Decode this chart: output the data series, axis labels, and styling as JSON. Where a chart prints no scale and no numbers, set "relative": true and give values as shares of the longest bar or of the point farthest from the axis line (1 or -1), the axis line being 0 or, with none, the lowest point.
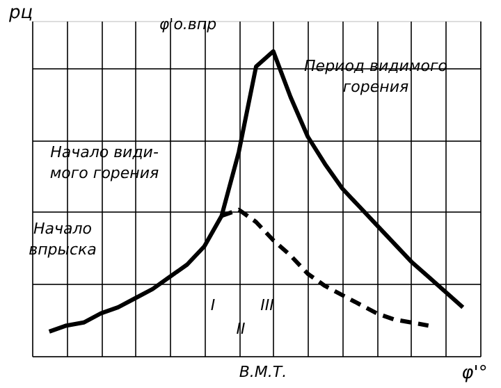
{
  "chart_data": {
    "type": "line",
    "relative": true,
    "grid": true,
    "tick_labels": false,
    "xlabel": "φ'°",
    "ylabel": "pц",
    "categories": [
      null,
      null,
      null,
      null,
      null,
      null,
      null,
      null,
      null,
      null,
      null,
      null,
      null,
      null,
      null,
      null,
      null,
      null,
      null,
      null,
      null,
      null,
      null,
      null,
      null,
      null,
      null
    ],
    "series": [
      {
        "color": "#000000",
        "line_style": "solid",
        "values": [
          null,
          0.08,
          0.1,
          0.11,
          0.14,
          0.16,
          0.19,
          0.22,
          0.26,
          0.3,
          0.36,
          0.46,
          0.67,
          0.95,
          1.0,
          0.85,
          0.72,
          0.63,
          0.55,
          0.49,
          0.43,
          0.37,
          0.31,
          0.26,
          0.21,
          0.16,
          null
        ]
      },
      {
        "color": "#000000",
        "line_style": "dashed",
        "values": [
          null,
          null,
          null,
          null,
          null,
          null,
          null,
          null,
          null,
          null,
          null,
          0.46,
          0.48,
          0.44,
          0.38,
          0.33,
          0.27,
          0.23,
          0.2,
          0.17,
          0.14,
          0.12,
          0.11,
          0.1,
          null,
          null,
          null
        ]
      }
    ],
    "annotations": [
      "φ'о.впр",
      "Период видимого\nгорения",
      "Начало види-\nмого горения",
      "Начало\nвпрыска",
      "I",
      "II",
      "III",
      "В.М.Т."
    ]
  }
}
